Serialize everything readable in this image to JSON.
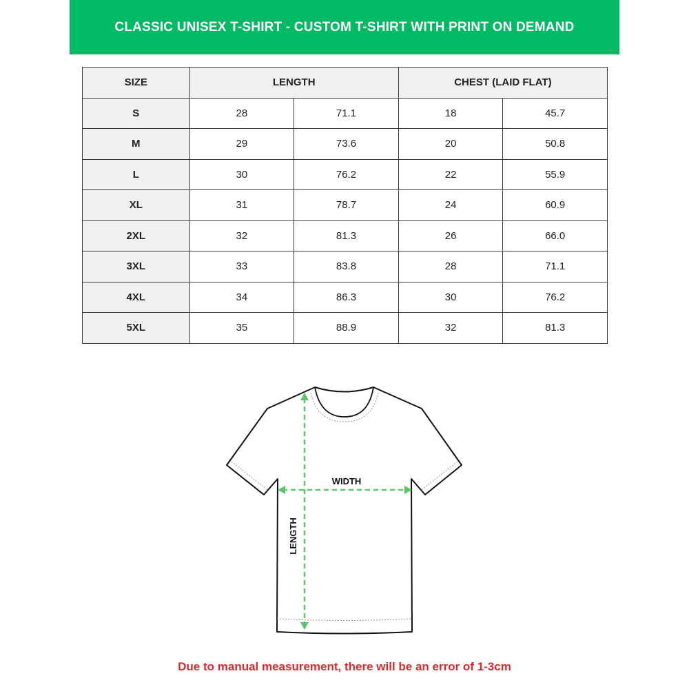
{
  "title": "CLASSIC UNISEX T-SHIRT - CUSTOM T-SHIRT WITH PRINT ON DEMAND",
  "colors": {
    "banner": "#00bb64",
    "arrow": "#5cc46a",
    "note": "#e3262b"
  },
  "table": {
    "headers": [
      "SIZE",
      "LENGTH",
      "CHEST (LAID FLAT)"
    ],
    "rows": [
      {
        "size": "S",
        "length_in": "28",
        "length_cm": "71.1",
        "chest_in": "18",
        "chest_cm": "45.7"
      },
      {
        "size": "M",
        "length_in": "29",
        "length_cm": "73.6",
        "chest_in": "20",
        "chest_cm": "50.8"
      },
      {
        "size": "L",
        "length_in": "30",
        "length_cm": "76.2",
        "chest_in": "22",
        "chest_cm": "55.9"
      },
      {
        "size": "XL",
        "length_in": "31",
        "length_cm": "78.7",
        "chest_in": "24",
        "chest_cm": "60.9"
      },
      {
        "size": "2XL",
        "length_in": "32",
        "length_cm": "81.3",
        "chest_in": "26",
        "chest_cm": "66.0"
      },
      {
        "size": "3XL",
        "length_in": "33",
        "length_cm": "83.8",
        "chest_in": "28",
        "chest_cm": "71.1"
      },
      {
        "size": "4XL",
        "length_in": "34",
        "length_cm": "86.3",
        "chest_in": "30",
        "chest_cm": "76.2"
      },
      {
        "size": "5XL",
        "length_in": "35",
        "length_cm": "88.9",
        "chest_in": "32",
        "chest_cm": "81.3"
      }
    ]
  },
  "diagram": {
    "width_label": "WIDTH",
    "length_label": "LENGTH"
  },
  "note": "Due to manual measurement, there will be an error of 1-3cm"
}
